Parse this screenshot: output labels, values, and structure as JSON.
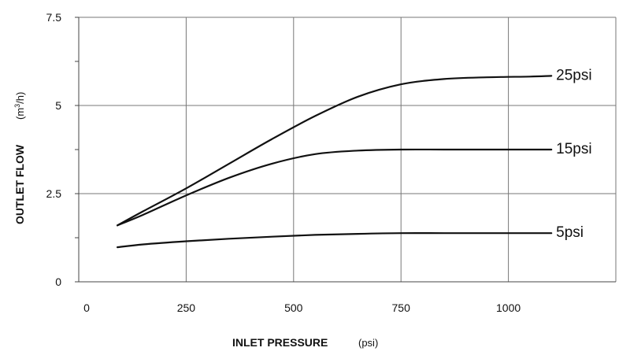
{
  "chart_data": {
    "type": "line",
    "title": "",
    "xlabel": "INLET PRESSURE",
    "xunit": "(psi)",
    "ylabel": "OUTLET FLOW",
    "yunit_prefix": "(m",
    "yunit_sup": "3",
    "yunit_suffix": "/h)",
    "xlim": [
      0,
      1250
    ],
    "ylim": [
      0,
      7.5
    ],
    "grid": true,
    "x_ticks": [
      0,
      250,
      500,
      750,
      1000
    ],
    "x_tick_labels": [
      "0",
      "250",
      "500",
      "750",
      "1000"
    ],
    "y_ticks": [
      0,
      2.5,
      5,
      7.5
    ],
    "y_tick_labels": [
      "0",
      "2.5",
      "5",
      "7.5"
    ],
    "y_minor_ticks": [
      1.25,
      3.75,
      6.25
    ],
    "series": [
      {
        "name": "25psi",
        "x": [
          90,
          150,
          250,
          350,
          450,
          550,
          650,
          750,
          850,
          950,
          1050,
          1100
        ],
        "y": [
          1.6,
          2.0,
          2.65,
          3.35,
          4.05,
          4.7,
          5.25,
          5.6,
          5.75,
          5.8,
          5.82,
          5.84
        ]
      },
      {
        "name": "15psi",
        "x": [
          90,
          150,
          250,
          350,
          450,
          550,
          650,
          750,
          850,
          950,
          1050,
          1100
        ],
        "y": [
          1.6,
          1.9,
          2.45,
          2.95,
          3.35,
          3.62,
          3.72,
          3.75,
          3.75,
          3.75,
          3.75,
          3.75
        ]
      },
      {
        "name": "5psi",
        "x": [
          90,
          150,
          250,
          350,
          450,
          550,
          650,
          750,
          850,
          950,
          1050,
          1100
        ],
        "y": [
          0.98,
          1.06,
          1.15,
          1.22,
          1.28,
          1.33,
          1.36,
          1.38,
          1.38,
          1.38,
          1.38,
          1.38
        ]
      }
    ]
  }
}
